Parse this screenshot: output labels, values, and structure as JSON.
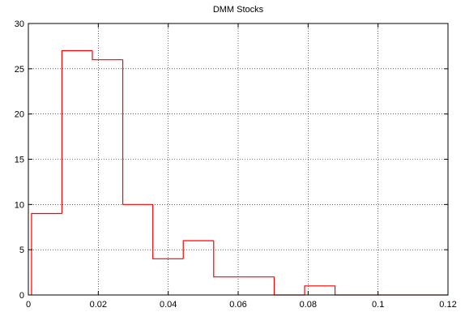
{
  "chart_data": {
    "type": "histogram",
    "title": "DMM Stocks",
    "xlabel": "",
    "ylabel": "",
    "xlim": [
      0,
      0.12
    ],
    "ylim": [
      0,
      30
    ],
    "xticks": [
      0,
      0.02,
      0.04,
      0.06,
      0.08,
      0.1,
      0.12
    ],
    "xtick_labels": [
      "0",
      "0.02",
      "0.04",
      "0.06",
      "0.08",
      "0.1",
      "0.12"
    ],
    "yticks": [
      0,
      5,
      10,
      15,
      20,
      25,
      30
    ],
    "ytick_labels": [
      "0",
      "5",
      "10",
      "15",
      "20",
      "25",
      "30"
    ],
    "grid": true,
    "grid_style": "dotted",
    "bins": [
      {
        "x0": 0.0009,
        "x1": 0.0096,
        "count": 9
      },
      {
        "x0": 0.0096,
        "x1": 0.0183,
        "count": 27
      },
      {
        "x0": 0.0183,
        "x1": 0.027,
        "count": 26
      },
      {
        "x0": 0.027,
        "x1": 0.0356,
        "count": 10
      },
      {
        "x0": 0.0356,
        "x1": 0.0443,
        "count": 4
      },
      {
        "x0": 0.0443,
        "x1": 0.053,
        "count": 6
      },
      {
        "x0": 0.053,
        "x1": 0.0617,
        "count": 2
      },
      {
        "x0": 0.0617,
        "x1": 0.0703,
        "count": 2
      },
      {
        "x0": 0.0703,
        "x1": 0.079,
        "count": 0
      },
      {
        "x0": 0.079,
        "x1": 0.0877,
        "count": 1
      }
    ],
    "line_color": "#ff0000"
  }
}
